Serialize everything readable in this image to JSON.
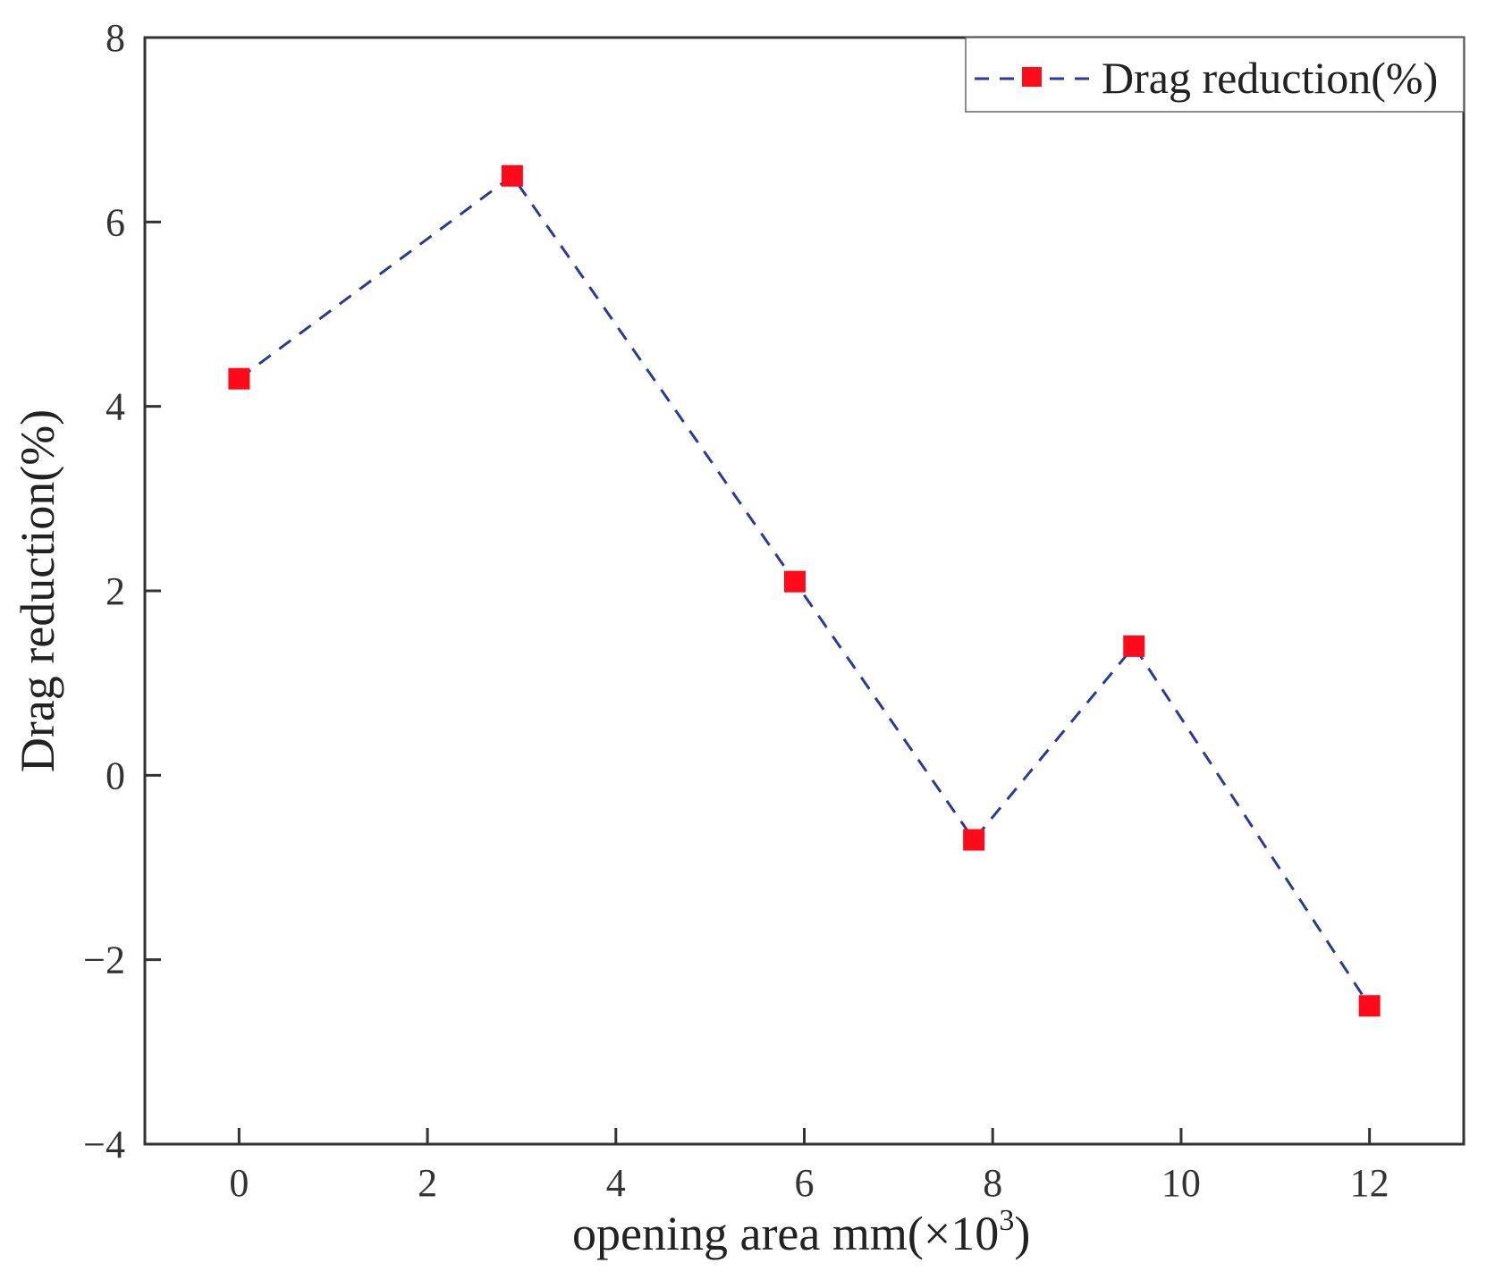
{
  "chart_data": {
    "type": "line",
    "title": "",
    "xlabel": "opening area mm(×10",
    "xlabel_sup": "3",
    "xlabel_close": ")",
    "ylabel": "Drag reduction(%)",
    "xlim": [
      -1,
      13
    ],
    "ylim": [
      -4,
      8
    ],
    "x_ticks": [
      0,
      2,
      4,
      6,
      8,
      10,
      12
    ],
    "y_ticks": [
      -4,
      -2,
      0,
      2,
      4,
      6,
      8
    ],
    "x_tick_labels": [
      "0",
      "2",
      "4",
      "6",
      "8",
      "10",
      "12"
    ],
    "y_tick_labels": [
      "−4",
      "−2",
      "0",
      "2",
      "4",
      "6",
      "8"
    ],
    "legend_position": "top-right",
    "series": [
      {
        "name": "Drag reduction(%)",
        "x": [
          0,
          2.9,
          5.9,
          7.8,
          9.5,
          12
        ],
        "values": [
          4.3,
          6.5,
          2.1,
          -0.7,
          1.4,
          -2.5
        ],
        "line_color": "#2b3a8f",
        "line_style": "dashed",
        "marker": "square",
        "marker_color": "#ff0a1a"
      }
    ]
  }
}
